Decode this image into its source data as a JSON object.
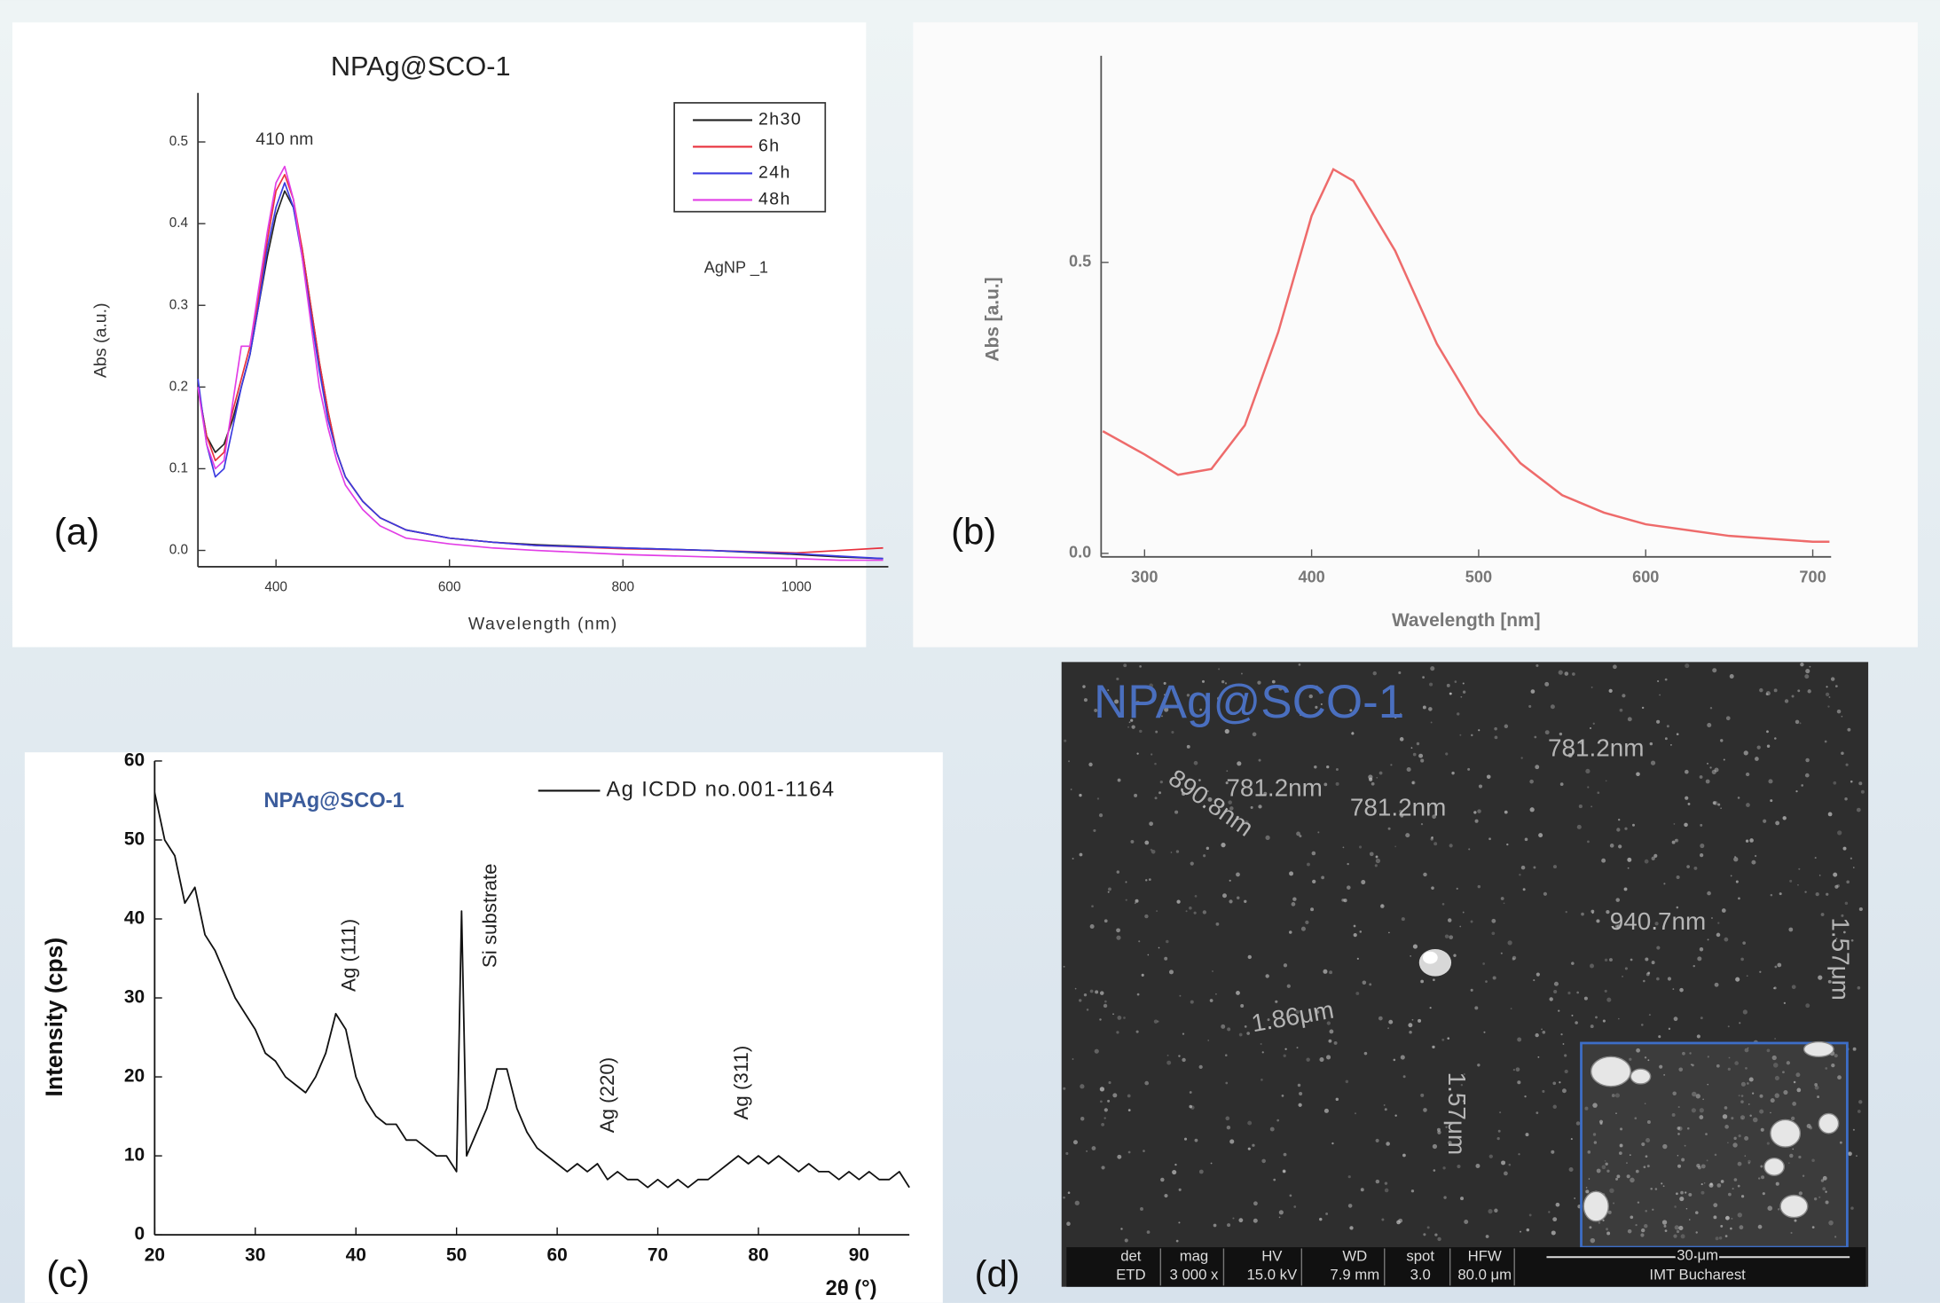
{
  "chart_data": [
    {
      "type": "line",
      "title": "NPAg@SCO-1",
      "x_label": "Wavelength (nm)",
      "y_label": "Abs (a.u.)",
      "annotations": [
        "410 nm",
        "AgNP _1"
      ],
      "legend": "upper right",
      "xlim": [
        310,
        1106
      ],
      "ylim": [
        -0.02,
        0.56
      ],
      "xticks": [
        400,
        600,
        800,
        1000
      ],
      "yticks": [
        {
          "value": 0,
          "label": "0.0"
        },
        0.1,
        0.2,
        0.3,
        0.4,
        0.5
      ],
      "x": [
        310,
        320,
        330,
        340,
        350,
        360,
        370,
        380,
        390,
        400,
        410,
        420,
        430,
        440,
        450,
        460,
        470,
        480,
        500,
        520,
        550,
        600,
        650,
        700,
        800,
        900,
        1000,
        1050,
        1100
      ],
      "series": [
        {
          "name": "2h30",
          "color": "#222222",
          "values": [
            0.2,
            0.14,
            0.12,
            0.13,
            0.16,
            0.2,
            0.24,
            0.3,
            0.36,
            0.41,
            0.44,
            0.42,
            0.37,
            0.3,
            0.23,
            0.17,
            0.12,
            0.09,
            0.06,
            0.04,
            0.025,
            0.015,
            0.01,
            0.007,
            0.003,
            0.0,
            -0.005,
            -0.008,
            -0.01
          ]
        },
        {
          "name": "6h",
          "color": "#e8303c",
          "values": [
            0.2,
            0.14,
            0.11,
            0.12,
            0.17,
            0.21,
            0.25,
            0.31,
            0.38,
            0.44,
            0.46,
            0.43,
            0.37,
            0.3,
            0.23,
            0.17,
            0.12,
            0.09,
            0.06,
            0.04,
            0.025,
            0.015,
            0.01,
            0.006,
            0.002,
            0.0,
            -0.003,
            0.0,
            0.003
          ]
        },
        {
          "name": "24h",
          "color": "#3a3ae0",
          "values": [
            0.21,
            0.13,
            0.09,
            0.1,
            0.15,
            0.2,
            0.24,
            0.3,
            0.37,
            0.42,
            0.45,
            0.42,
            0.36,
            0.29,
            0.22,
            0.16,
            0.12,
            0.09,
            0.06,
            0.04,
            0.025,
            0.015,
            0.01,
            0.006,
            0.003,
            0.0,
            -0.004,
            -0.007,
            -0.01
          ]
        },
        {
          "name": "48h",
          "color": "#e23ee6",
          "values": [
            0.2,
            0.13,
            0.1,
            0.11,
            0.18,
            0.25,
            0.25,
            0.32,
            0.39,
            0.45,
            0.47,
            0.43,
            0.36,
            0.28,
            0.2,
            0.15,
            0.11,
            0.08,
            0.05,
            0.03,
            0.015,
            0.008,
            0.003,
            0.0,
            -0.005,
            -0.008,
            -0.01,
            -0.012,
            -0.012
          ]
        }
      ]
    },
    {
      "type": "line",
      "x_label": "Wavelength [nm]",
      "y_label": "Abs [a.u.]",
      "color": "#ee6b6b",
      "xlim": [
        274,
        711
      ],
      "ylim": [
        -0.006,
        0.855
      ],
      "xticks": [
        300,
        400,
        500,
        600,
        700
      ],
      "yticks": [
        {
          "value": 0,
          "label": "0.0"
        },
        0.5
      ],
      "x": [
        275,
        300,
        320,
        340,
        360,
        380,
        400,
        413,
        425,
        450,
        475,
        500,
        525,
        550,
        575,
        600,
        650,
        700,
        710
      ],
      "values": [
        0.21,
        0.17,
        0.135,
        0.145,
        0.22,
        0.38,
        0.58,
        0.66,
        0.64,
        0.52,
        0.36,
        0.24,
        0.155,
        0.1,
        0.07,
        0.05,
        0.03,
        0.02,
        0.02
      ]
    },
    {
      "type": "line",
      "x_label": "2θ (°)",
      "y_label": "Intensity (cps)",
      "legend": "upper right",
      "annotations": [
        "NPAg@SCO-1",
        "Ag (111)",
        "Si substrate",
        "Ag (220)",
        "Ag (311)"
      ],
      "xlim": [
        20,
        95
      ],
      "ylim": [
        0,
        60
      ],
      "xticks": [
        20,
        30,
        40,
        50,
        60,
        70,
        80,
        90
      ],
      "yticks": [
        0,
        10,
        20,
        30,
        40,
        50,
        60
      ],
      "x": [
        20,
        21,
        22,
        23,
        24,
        25,
        26,
        27,
        28,
        29,
        30,
        31,
        32,
        33,
        34,
        35,
        36,
        37,
        38,
        39,
        40,
        41,
        42,
        43,
        44,
        45,
        46,
        47,
        48,
        49,
        50,
        50.5,
        51,
        52,
        53,
        54,
        55,
        56,
        57,
        58,
        59,
        60,
        61,
        62,
        63,
        64,
        65,
        66,
        67,
        68,
        69,
        70,
        71,
        72,
        73,
        74,
        75,
        76,
        77,
        78,
        79,
        80,
        81,
        82,
        83,
        84,
        85,
        86,
        87,
        88,
        89,
        90,
        91,
        92,
        93,
        94,
        95
      ],
      "series": [
        {
          "name": "Ag ICDD no.001-1164",
          "color": "#111111",
          "values": [
            56,
            50,
            48,
            42,
            44,
            38,
            36,
            33,
            30,
            28,
            26,
            23,
            22,
            20,
            19,
            18,
            20,
            23,
            28,
            26,
            20,
            17,
            15,
            14,
            14,
            12,
            12,
            11,
            10,
            10,
            8,
            41,
            10,
            13,
            16,
            21,
            21,
            16,
            13,
            11,
            10,
            9,
            8,
            9,
            8,
            9,
            7,
            8,
            7,
            7,
            6,
            7,
            6,
            7,
            6,
            7,
            7,
            8,
            9,
            10,
            9,
            10,
            9,
            10,
            9,
            8,
            9,
            8,
            8,
            7,
            8,
            7,
            8,
            7,
            7,
            8,
            6
          ]
        }
      ]
    }
  ],
  "panel_labels": [
    "(a)",
    "(b)",
    "(c)",
    "(d)"
  ],
  "sem": {
    "title": "NPAg@SCO-1",
    "measurements": [
      "781.2nm",
      "781.2nm",
      "781.2nm",
      "890.8nm",
      "940.7nm",
      "1.57μm",
      "1.86μm",
      "1.57μm"
    ],
    "info_headers": [
      "det",
      "mag",
      "HV",
      "WD",
      "spot",
      "HFW"
    ],
    "info_values": [
      "ETD",
      "3 000 x",
      "15.0 kV",
      "7.9 mm",
      "3.0",
      "80.0 μm"
    ],
    "scale": "30 μm",
    "institution": "IMT Bucharest"
  }
}
